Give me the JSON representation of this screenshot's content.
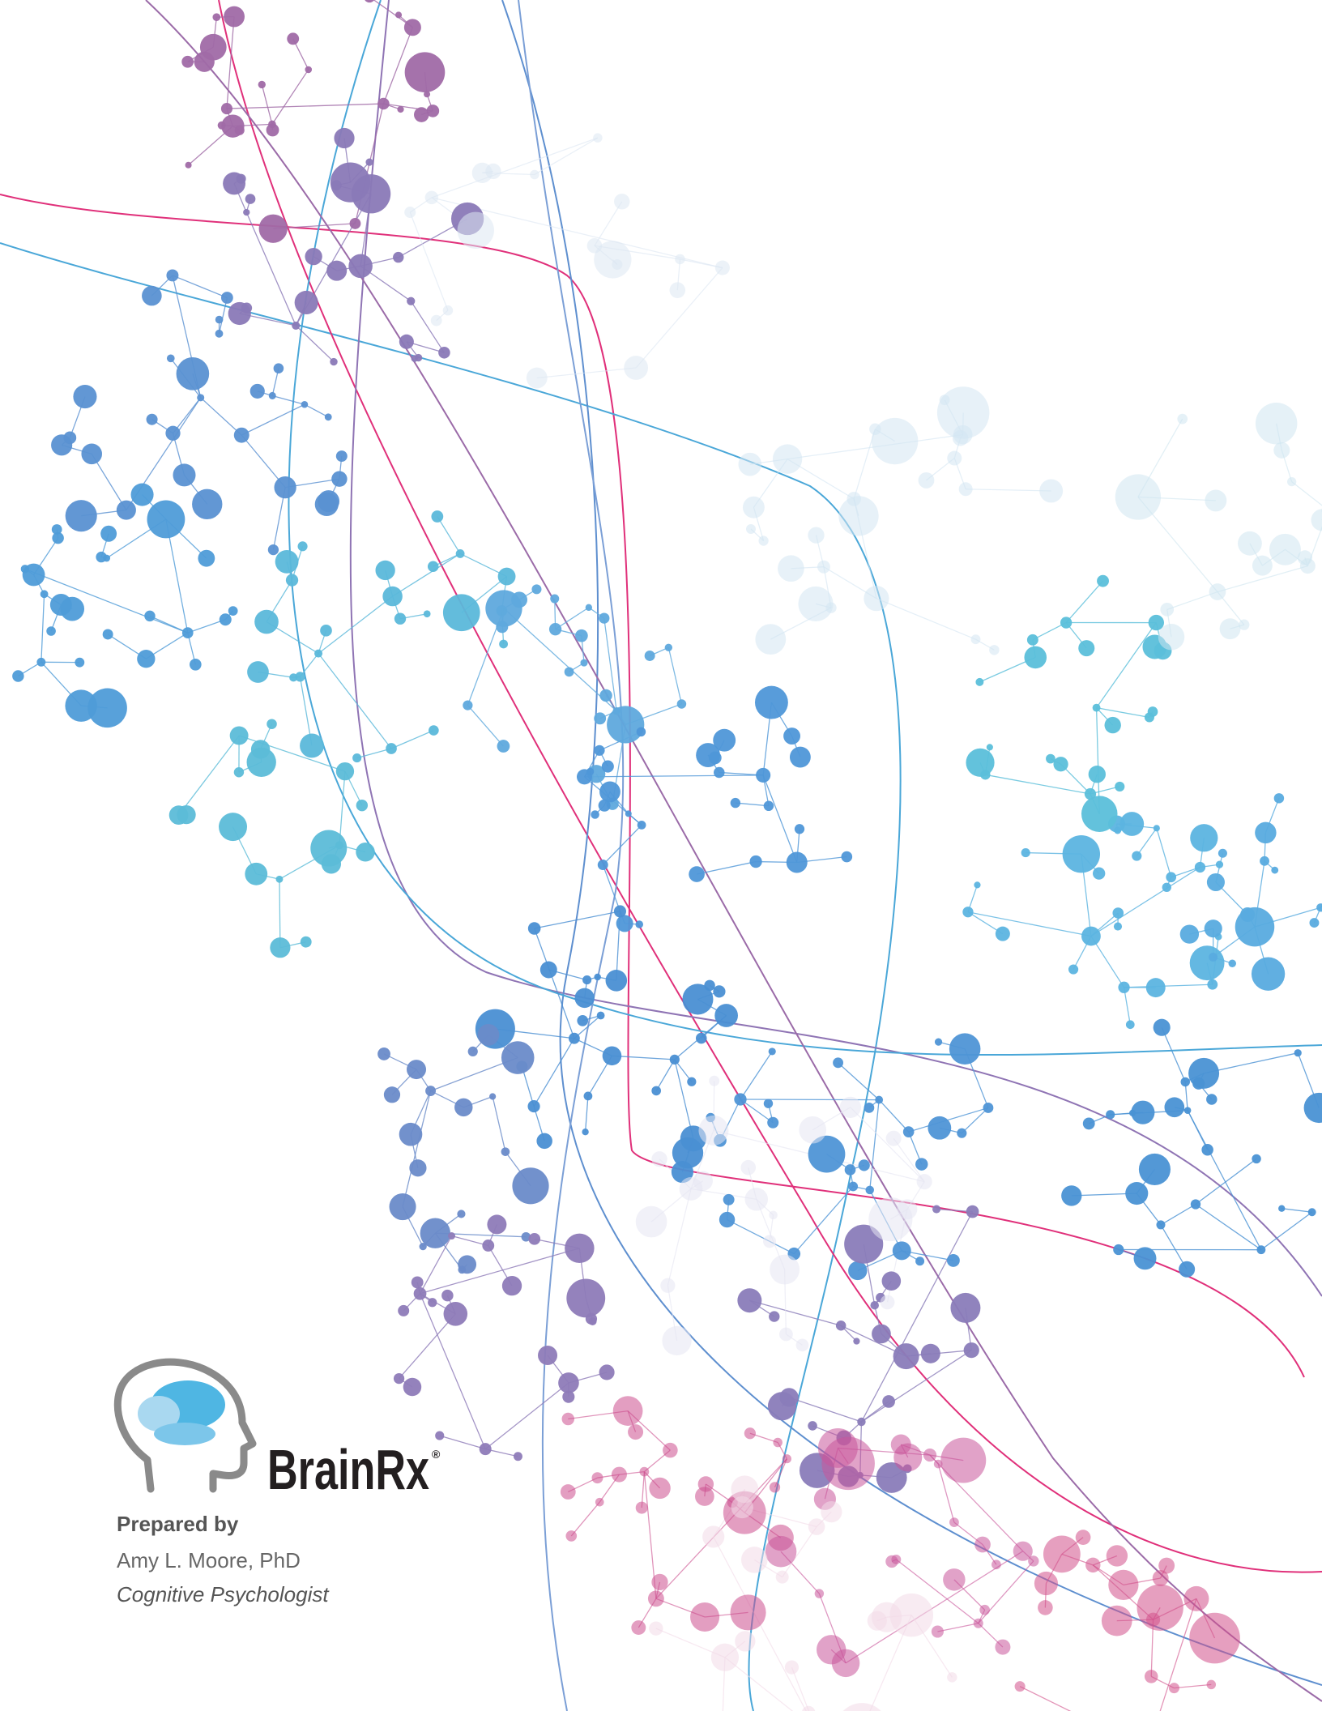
{
  "logo": {
    "brand": "BrainRx",
    "mark": "®"
  },
  "credits": {
    "label": "Prepared by",
    "name": "Amy L. Moore, PhD",
    "role": "Cognitive Psychologist"
  }
}
